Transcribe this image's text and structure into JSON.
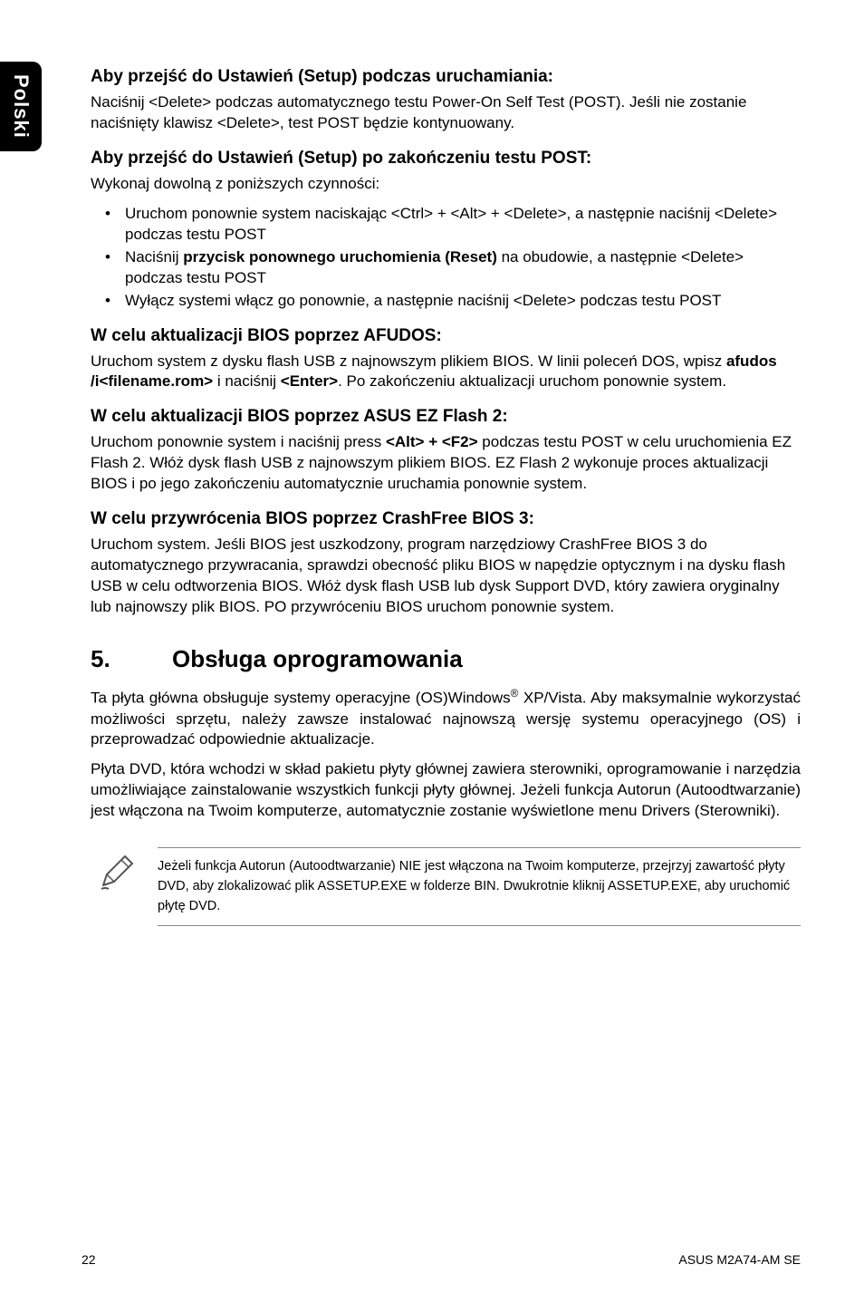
{
  "sideTab": "Polski",
  "sections": [
    {
      "heading": "Aby przejść do Ustawień (Setup) podczas uruchamiania:",
      "para": "Naciśnij <Delete> podczas automatycznego testu Power-On Self Test (POST). Jeśli nie zostanie naciśnięty klawisz <Delete>, test POST będzie kontynuowany."
    },
    {
      "heading": "Aby przejść do Ustawień (Setup) po zakończeniu testu POST:",
      "para": "Wykonaj dowolną z poniższych czynności:",
      "list": [
        "Uruchom ponownie system naciskając <Ctrl> + <Alt> + <Delete>, a następnie naciśnij <Delete> podczas testu POST",
        "Naciśnij <b>przycisk ponownego uruchomienia (Reset)</b> na obudowie, a następnie <Delete> podczas testu POST",
        "Wyłącz systemi włącz go ponownie, a następnie naciśnij <Delete> podczas testu POST"
      ]
    },
    {
      "heading": "W celu aktualizacji BIOS poprzez AFUDOS:",
      "para": "Uruchom system z dysku flash USB z najnowszym plikiem BIOS. W linii poleceń DOS, wpisz <b>afudos /i<filename.rom></b>  i naciśnij <b><Enter></b>. Po zakończeniu aktualizacji uruchom ponownie system."
    },
    {
      "heading": "W celu aktualizacji BIOS poprzez ASUS EZ Flash 2:",
      "para": "Uruchom ponownie system i naciśnij press <b><Alt> + <F2></b> podczas testu POST w celu uruchomienia EZ Flash 2. Włóż dysk flash USB z najnowszym plikiem BIOS. EZ Flash 2 wykonuje proces aktualizacji BIOS i po jego zakończeniu automatycznie uruchamia ponownie system."
    },
    {
      "heading": "W celu przywrócenia BIOS poprzez CrashFree BIOS 3:",
      "para": "Uruchom system. Jeśli BIOS jest uszkodzony, program narzędziowy CrashFree BIOS 3 do automatycznego przywracania, sprawdzi obecność pliku BIOS w napędzie optycznym i na dysku flash USB w celu odtworzenia BIOS. Włóż dysk flash USB lub dysk Support DVD, który zawiera oryginalny lub najnowszy plik BIOS. PO przywróceniu BIOS uruchom ponownie system."
    }
  ],
  "mainSection": {
    "number": "5.",
    "title": "Obsługa oprogramowania",
    "para1_pre": "Ta płyta główna obsługuje systemy operacyjne (OS)Windows",
    "para1_sup": "®",
    "para1_post": " XP/Vista. Aby maksymalnie wykorzystać możliwości sprzętu, należy zawsze instalować najnowszą wersję systemu operacyjnego (OS) i przeprowadzać odpowiednie aktualizacje.",
    "para2": "Płyta DVD, która wchodzi w skład pakietu płyty głównej zawiera sterowniki, oprogramowanie i narzędzia umożliwiające zainstalowanie wszystkich funkcji płyty głównej. Jeżeli funkcja Autorun (Autoodtwarzanie) jest włączona na Twoim komputerze, automatycznie zostanie wyświetlone menu Drivers (Sterowniki)."
  },
  "note": "Jeżeli funkcja Autorun (Autoodtwarzanie) NIE jest włączona na Twoim komputerze, przejrzyj zawartość płyty DVD, aby zlokalizować plik ASSETUP.EXE w folderze BIN. Dwukrotnie kliknij ASSETUP.EXE, aby uruchomić płytę DVD.",
  "footer": {
    "pageNum": "22",
    "right": "ASUS M2A74-AM SE"
  }
}
